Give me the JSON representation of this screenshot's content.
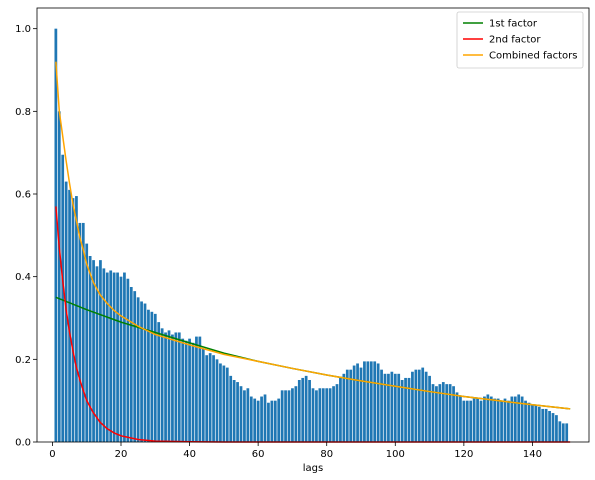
{
  "chart_data": {
    "type": "bar",
    "title": "",
    "xlabel": "lags",
    "ylabel": "",
    "xlim": [
      -4.5,
      156.5
    ],
    "ylim": [
      0,
      1.05
    ],
    "xticks": [
      0,
      20,
      40,
      60,
      80,
      100,
      120,
      140
    ],
    "xtick_labels": [
      "0",
      "20",
      "40",
      "60",
      "80",
      "100",
      "120",
      "140"
    ],
    "yticks": [
      0.0,
      0.2,
      0.4,
      0.6,
      0.8,
      1.0
    ],
    "ytick_labels": [
      "0.0",
      "0.2",
      "0.4",
      "0.6",
      "0.8",
      "1.0"
    ],
    "grid": false,
    "legend_position": "top-right",
    "bar_color": "#1f77b4",
    "bars": {
      "x_start": 1,
      "x_step": 1,
      "values": [
        1.0,
        0.8,
        0.695,
        0.63,
        0.61,
        0.59,
        0.595,
        0.53,
        0.53,
        0.48,
        0.45,
        0.44,
        0.425,
        0.44,
        0.42,
        0.41,
        0.415,
        0.41,
        0.41,
        0.4,
        0.41,
        0.395,
        0.375,
        0.365,
        0.35,
        0.34,
        0.335,
        0.32,
        0.315,
        0.31,
        0.29,
        0.275,
        0.265,
        0.27,
        0.26,
        0.265,
        0.265,
        0.25,
        0.245,
        0.25,
        0.24,
        0.255,
        0.255,
        0.225,
        0.21,
        0.215,
        0.21,
        0.2,
        0.19,
        0.185,
        0.18,
        0.16,
        0.15,
        0.145,
        0.135,
        0.125,
        0.13,
        0.11,
        0.105,
        0.1,
        0.11,
        0.115,
        0.095,
        0.1,
        0.1,
        0.105,
        0.125,
        0.125,
        0.125,
        0.13,
        0.135,
        0.15,
        0.155,
        0.16,
        0.15,
        0.13,
        0.125,
        0.13,
        0.13,
        0.13,
        0.13,
        0.135,
        0.14,
        0.155,
        0.165,
        0.175,
        0.175,
        0.185,
        0.19,
        0.18,
        0.195,
        0.195,
        0.195,
        0.195,
        0.19,
        0.175,
        0.165,
        0.165,
        0.17,
        0.165,
        0.165,
        0.15,
        0.155,
        0.155,
        0.17,
        0.175,
        0.175,
        0.18,
        0.17,
        0.16,
        0.14,
        0.135,
        0.14,
        0.145,
        0.14,
        0.14,
        0.135,
        0.12,
        0.11,
        0.1,
        0.1,
        0.1,
        0.105,
        0.105,
        0.1,
        0.11,
        0.115,
        0.11,
        0.105,
        0.105,
        0.1,
        0.105,
        0.1,
        0.11,
        0.11,
        0.115,
        0.11,
        0.1,
        0.095,
        0.09,
        0.09,
        0.085,
        0.08,
        0.08,
        0.075,
        0.07,
        0.065,
        0.05,
        0.045,
        0.045
      ]
    },
    "series": [
      {
        "name": "1st factor",
        "color": "#008000",
        "type": "line",
        "x": [
          1,
          10,
          20,
          30,
          40,
          50,
          60,
          70,
          80,
          90,
          100,
          110,
          120,
          130,
          140,
          151
        ],
        "y": [
          0.35,
          0.32,
          0.29,
          0.265,
          0.24,
          0.215,
          0.195,
          0.178,
          0.162,
          0.148,
          0.135,
          0.122,
          0.11,
          0.1,
          0.09,
          0.08
        ]
      },
      {
        "name": "2nd factor",
        "color": "#ff0000",
        "type": "line",
        "x": [
          1,
          2,
          3,
          4,
          5,
          6,
          7,
          8,
          9,
          10,
          12,
          14,
          16,
          18,
          20,
          25,
          30,
          40,
          50,
          151
        ],
        "y": [
          0.57,
          0.47,
          0.39,
          0.32,
          0.265,
          0.22,
          0.18,
          0.15,
          0.125,
          0.1,
          0.07,
          0.047,
          0.032,
          0.022,
          0.015,
          0.006,
          0.002,
          0.0005,
          0.0,
          0.0
        ]
      },
      {
        "name": "Combined factors",
        "color": "#ffa500",
        "type": "line",
        "x": [
          1,
          2,
          3,
          4,
          5,
          6,
          7,
          8,
          9,
          10,
          12,
          14,
          16,
          18,
          20,
          25,
          30,
          40,
          50,
          60,
          70,
          80,
          90,
          100,
          110,
          120,
          130,
          140,
          151
        ],
        "y": [
          0.92,
          0.8,
          0.74,
          0.68,
          0.625,
          0.575,
          0.535,
          0.495,
          0.465,
          0.43,
          0.385,
          0.355,
          0.335,
          0.318,
          0.305,
          0.28,
          0.26,
          0.235,
          0.212,
          0.195,
          0.178,
          0.162,
          0.148,
          0.135,
          0.122,
          0.11,
          0.1,
          0.09,
          0.08
        ]
      }
    ]
  }
}
